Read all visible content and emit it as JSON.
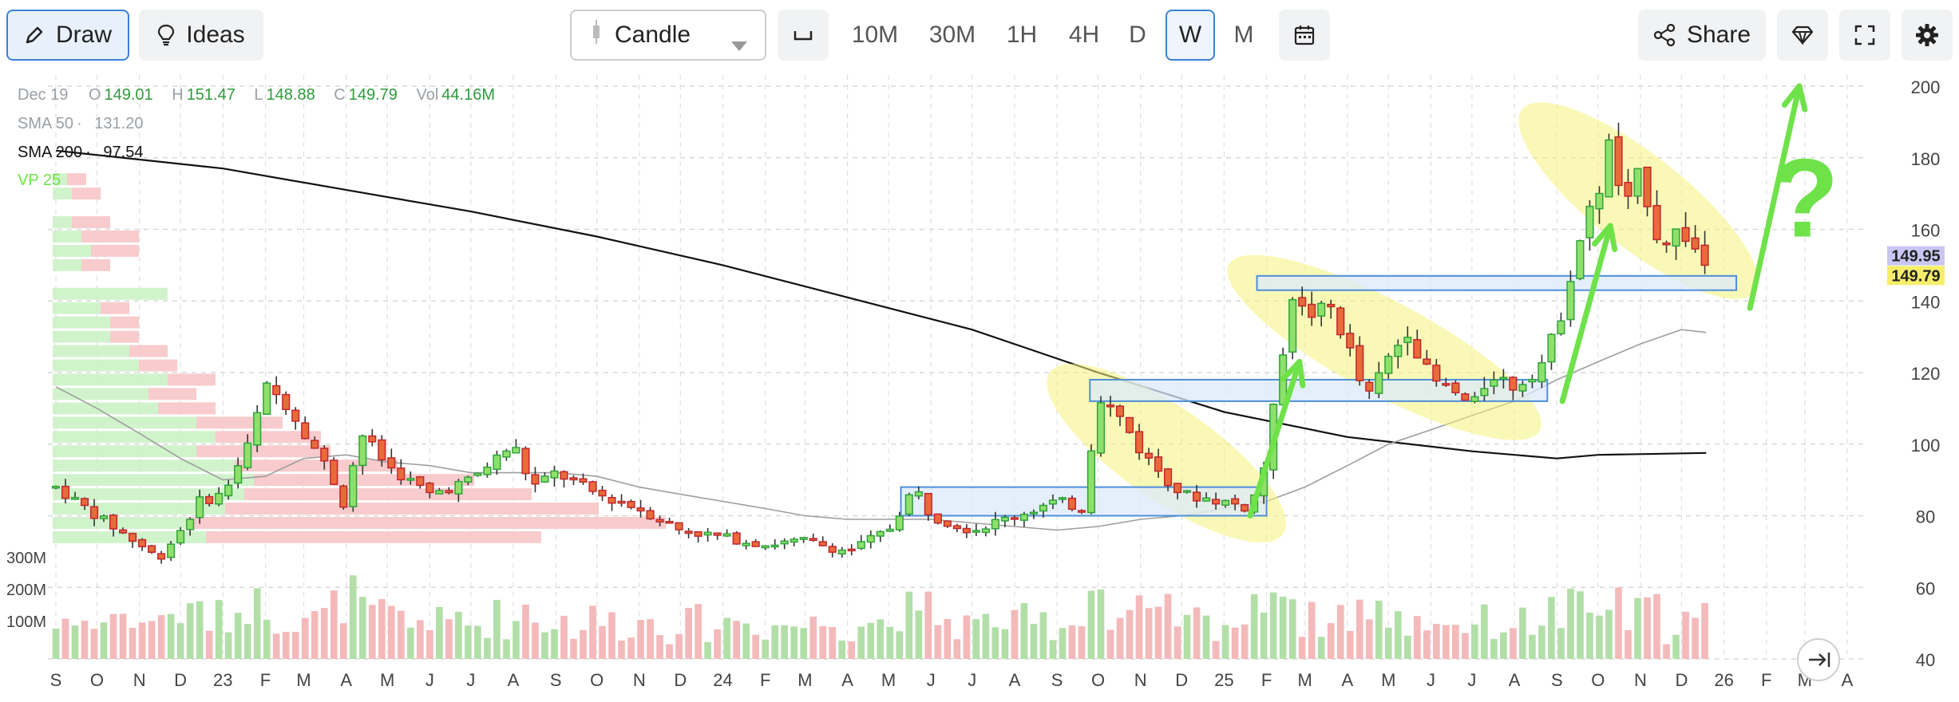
{
  "toolbar": {
    "draw_label": "Draw",
    "ideas_label": "Ideas",
    "chart_type": "Candle",
    "timeframes": [
      "10M",
      "30M",
      "1H",
      "4H",
      "D",
      "W",
      "M"
    ],
    "active_timeframe": "W",
    "share_label": "Share"
  },
  "legend": {
    "date": "Dec 19",
    "open_label": "O",
    "open": "149.01",
    "high_label": "H",
    "high": "151.47",
    "low_label": "L",
    "low": "148.88",
    "close_label": "C",
    "close": "149.79",
    "vol_label": "Vol",
    "vol": "44.16M",
    "sma50_label": "SMA 50",
    "sma50": "131.20",
    "sma200_label": "SMA 200",
    "sma200": "97.54",
    "vp_label": "VP 25"
  },
  "price_badges": {
    "upper": "149.95",
    "lower": "149.79"
  },
  "annotation_text": "?",
  "chart_data": {
    "type": "candlestick",
    "y_ticks": [
      "200",
      "180",
      "160",
      "140",
      "120",
      "100",
      "80",
      "60",
      "40"
    ],
    "y_tick_values": [
      200,
      180,
      160,
      140,
      120,
      100,
      80,
      60,
      40
    ],
    "volume_ticks": [
      "300M",
      "200M",
      "100M"
    ],
    "ylim": [
      40,
      200
    ],
    "x_ticks": [
      "S",
      "O",
      "N",
      "D",
      "23",
      "F",
      "M",
      "A",
      "M",
      "J",
      "J",
      "A",
      "S",
      "O",
      "N",
      "D",
      "24",
      "F",
      "M",
      "A",
      "M",
      "J",
      "J",
      "A",
      "S",
      "O",
      "N",
      "D",
      "25",
      "F",
      "M",
      "A",
      "M",
      "J",
      "J",
      "A",
      "S",
      "O",
      "N",
      "D",
      "26",
      "F",
      "M",
      "A"
    ],
    "x_range": [
      "2022-09",
      "2026-04"
    ],
    "grid": true,
    "anchors": [
      [
        "2022-09-01",
        88
      ],
      [
        "2022-10-01",
        80
      ],
      [
        "2022-11-01",
        72
      ],
      [
        "2022-11-15",
        68
      ],
      [
        "2022-12-01",
        76
      ],
      [
        "2022-12-15",
        84
      ],
      [
        "2023-01-01",
        86
      ],
      [
        "2023-01-20",
        100
      ],
      [
        "2023-02-01",
        116
      ],
      [
        "2023-02-15",
        112
      ],
      [
        "2023-03-01",
        104
      ],
      [
        "2023-03-20",
        92
      ],
      [
        "2023-04-01",
        82
      ],
      [
        "2023-04-10",
        104
      ],
      [
        "2023-05-01",
        94
      ],
      [
        "2023-06-01",
        86
      ],
      [
        "2023-07-01",
        90
      ],
      [
        "2023-08-01",
        100
      ],
      [
        "2023-08-15",
        88
      ],
      [
        "2023-09-01",
        92
      ],
      [
        "2023-10-01",
        86
      ],
      [
        "2023-11-01",
        82
      ],
      [
        "2023-12-01",
        76
      ],
      [
        "2024-01-01",
        74
      ],
      [
        "2024-02-01",
        72
      ],
      [
        "2024-03-01",
        73
      ],
      [
        "2024-04-01",
        70
      ],
      [
        "2024-05-01",
        76
      ],
      [
        "2024-05-20",
        88
      ],
      [
        "2024-06-01",
        80
      ],
      [
        "2024-07-01",
        76
      ],
      [
        "2024-08-01",
        80
      ],
      [
        "2024-09-01",
        84
      ],
      [
        "2024-09-20",
        82
      ],
      [
        "2024-10-01",
        114
      ],
      [
        "2024-10-20",
        106
      ],
      [
        "2024-11-01",
        98
      ],
      [
        "2024-12-01",
        86
      ],
      [
        "2025-01-01",
        84
      ],
      [
        "2025-01-20",
        82
      ],
      [
        "2025-02-01",
        96
      ],
      [
        "2025-02-10",
        120
      ],
      [
        "2025-02-20",
        142
      ],
      [
        "2025-03-01",
        136
      ],
      [
        "2025-03-20",
        138
      ],
      [
        "2025-04-01",
        128
      ],
      [
        "2025-04-15",
        112
      ],
      [
        "2025-05-01",
        124
      ],
      [
        "2025-05-15",
        132
      ],
      [
        "2025-06-01",
        118
      ],
      [
        "2025-06-20",
        114
      ],
      [
        "2025-07-01",
        110
      ],
      [
        "2025-07-15",
        120
      ],
      [
        "2025-08-01",
        116
      ],
      [
        "2025-08-20",
        122
      ],
      [
        "2025-09-01",
        132
      ],
      [
        "2025-09-10",
        146
      ],
      [
        "2025-09-20",
        160
      ],
      [
        "2025-10-01",
        170
      ],
      [
        "2025-10-10",
        185
      ],
      [
        "2025-10-20",
        164
      ],
      [
        "2025-11-01",
        176
      ],
      [
        "2025-11-15",
        156
      ],
      [
        "2025-12-01",
        160
      ],
      [
        "2025-12-19",
        149.79
      ]
    ],
    "sma50": [
      [
        "2022-09-01",
        116
      ],
      [
        "2022-10-01",
        110
      ],
      [
        "2022-11-01",
        103
      ],
      [
        "2022-12-01",
        96
      ],
      [
        "2023-01-01",
        90
      ],
      [
        "2023-02-01",
        91
      ],
      [
        "2023-03-01",
        96
      ],
      [
        "2023-04-01",
        97
      ],
      [
        "2023-05-01",
        95
      ],
      [
        "2023-06-01",
        94
      ],
      [
        "2023-07-01",
        92
      ],
      [
        "2023-08-01",
        92
      ],
      [
        "2023-09-01",
        92
      ],
      [
        "2023-10-01",
        91
      ],
      [
        "2023-11-01",
        88
      ],
      [
        "2023-12-01",
        86
      ],
      [
        "2024-01-01",
        84
      ],
      [
        "2024-02-01",
        82
      ],
      [
        "2024-03-01",
        80
      ],
      [
        "2024-04-01",
        79
      ],
      [
        "2024-05-01",
        79
      ],
      [
        "2024-06-01",
        79
      ],
      [
        "2024-07-01",
        78
      ],
      [
        "2024-08-01",
        77
      ],
      [
        "2024-09-01",
        76
      ],
      [
        "2024-10-01",
        77
      ],
      [
        "2024-11-01",
        79
      ],
      [
        "2024-12-01",
        80
      ],
      [
        "2025-01-01",
        82
      ],
      [
        "2025-02-01",
        84
      ],
      [
        "2025-03-01",
        88
      ],
      [
        "2025-04-01",
        94
      ],
      [
        "2025-05-01",
        100
      ],
      [
        "2025-06-01",
        104
      ],
      [
        "2025-07-01",
        108
      ],
      [
        "2025-08-01",
        112
      ],
      [
        "2025-09-01",
        118
      ],
      [
        "2025-10-01",
        123
      ],
      [
        "2025-11-01",
        128
      ],
      [
        "2025-12-01",
        132
      ],
      [
        "2025-12-19",
        131.2
      ]
    ],
    "sma200": [
      [
        "2022-09-01",
        182
      ],
      [
        "2023-01-01",
        177
      ],
      [
        "2023-04-01",
        171
      ],
      [
        "2023-07-01",
        165
      ],
      [
        "2023-10-01",
        158
      ],
      [
        "2024-01-01",
        150
      ],
      [
        "2024-04-01",
        141
      ],
      [
        "2024-07-01",
        132
      ],
      [
        "2024-10-01",
        120
      ],
      [
        "2025-01-01",
        109
      ],
      [
        "2025-04-01",
        102
      ],
      [
        "2025-07-01",
        98
      ],
      [
        "2025-08-01",
        97
      ],
      [
        "2025-09-01",
        96
      ],
      [
        "2025-10-01",
        97
      ],
      [
        "2025-12-19",
        97.54
      ]
    ],
    "volume_profile": [
      {
        "price_low": 72,
        "price_high": 76,
        "up": 32,
        "down": 70
      },
      {
        "price_low": 76,
        "price_high": 80,
        "up": 28,
        "down": 100
      },
      {
        "price_low": 80,
        "price_high": 84,
        "up": 36,
        "down": 78
      },
      {
        "price_low": 84,
        "price_high": 88,
        "up": 40,
        "down": 60
      },
      {
        "price_low": 88,
        "price_high": 92,
        "up": 42,
        "down": 46
      },
      {
        "price_low": 92,
        "price_high": 96,
        "up": 38,
        "down": 34
      },
      {
        "price_low": 96,
        "price_high": 100,
        "up": 30,
        "down": 28
      },
      {
        "price_low": 100,
        "price_high": 104,
        "up": 34,
        "down": 22
      },
      {
        "price_low": 104,
        "price_high": 108,
        "up": 30,
        "down": 18
      },
      {
        "price_low": 108,
        "price_high": 112,
        "up": 22,
        "down": 12
      },
      {
        "price_low": 112,
        "price_high": 116,
        "up": 20,
        "down": 10
      },
      {
        "price_low": 116,
        "price_high": 120,
        "up": 24,
        "down": 10
      },
      {
        "price_low": 120,
        "price_high": 124,
        "up": 18,
        "down": 8
      },
      {
        "price_low": 124,
        "price_high": 128,
        "up": 16,
        "down": 8
      },
      {
        "price_low": 128,
        "price_high": 132,
        "up": 12,
        "down": 6
      },
      {
        "price_low": 132,
        "price_high": 136,
        "up": 12,
        "down": 6
      },
      {
        "price_low": 136,
        "price_high": 140,
        "up": 10,
        "down": 6
      },
      {
        "price_low": 140,
        "price_high": 144,
        "up": 24,
        "down": 0
      },
      {
        "price_low": 148,
        "price_high": 152,
        "up": 6,
        "down": 6
      },
      {
        "price_low": 152,
        "price_high": 156,
        "up": 8,
        "down": 10
      },
      {
        "price_low": 156,
        "price_high": 160,
        "up": 6,
        "down": 12
      },
      {
        "price_low": 160,
        "price_high": 164,
        "up": 4,
        "down": 8
      },
      {
        "price_low": 168,
        "price_high": 172,
        "up": 4,
        "down": 6
      },
      {
        "price_low": 172,
        "price_high": 176,
        "up": 3,
        "down": 4
      }
    ],
    "zones": [
      {
        "start": "2024-05-10",
        "end": "2025-02-01",
        "low": 80,
        "high": 88
      },
      {
        "start": "2024-09-25",
        "end": "2025-08-25",
        "low": 112,
        "high": 118
      },
      {
        "start": "2025-01-25",
        "end": "2026-01-10",
        "low": 143,
        "high": 147
      }
    ],
    "highlight_ellipses": [
      {
        "start": "2024-09-15",
        "end": "2025-01-25",
        "from_price": 115,
        "to_price": 80
      },
      {
        "start": "2025-01-25",
        "end": "2025-07-30",
        "from_price": 146,
        "to_price": 108
      },
      {
        "start": "2025-08-25",
        "end": "2026-01-05",
        "from_price": 188,
        "to_price": 148
      }
    ],
    "arrows": [
      {
        "x_from": "2025-01-20",
        "x_to": "2025-02-25",
        "y_from": 80,
        "y_to": 123
      },
      {
        "x_from": "2025-09-05",
        "x_to": "2025-10-10",
        "y_from": 112,
        "y_to": 161
      },
      {
        "x_from": "2026-01-20",
        "x_to": "2026-02-25",
        "y_from": 138,
        "y_to": 200
      }
    ],
    "colors": {
      "up": "#2fa33b",
      "up_fill": "#8ee06a",
      "down": "#c1272d",
      "down_fill": "#e86b3a",
      "volume_up": "#b2dfa8",
      "volume_down": "#f4b9ba",
      "vp_up": "#c9f1c3",
      "vp_down": "#f7c5c6",
      "sma50": "#9e9e9e",
      "sma200": "#111111",
      "zone_fill": "#dbe9f9",
      "zone_stroke": "#4f8fd8",
      "ellipse": "#f5f27a",
      "arrow": "#6fe24a",
      "badge_upper": "#c8c6f2",
      "badge_lower": "#f6ee6a"
    }
  }
}
